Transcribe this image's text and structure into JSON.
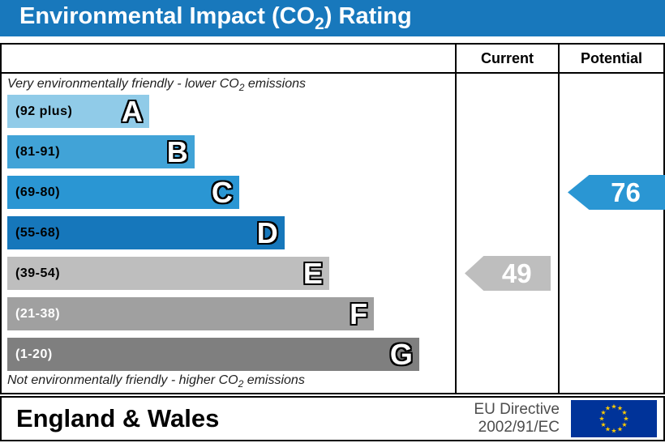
{
  "title": {
    "prefix": "Environmental Impact (CO",
    "sub": "2",
    "suffix": ") Rating"
  },
  "header": {
    "current": "Current",
    "potential": "Potential"
  },
  "top_note": {
    "prefix": "Very environmentally friendly - lower CO",
    "sub": "2",
    "suffix": " emissions"
  },
  "bottom_note": {
    "prefix": "Not environmentally friendly - higher CO",
    "sub": "2",
    "suffix": " emissions"
  },
  "footer": {
    "region": "England & Wales",
    "directive_line1": "EU Directive",
    "directive_line2": "2002/91/EC",
    "flag": {
      "background": "#003399",
      "star_color": "#ffcc00"
    }
  },
  "colors": {
    "title_bar": "#1878bc",
    "border": "#000000"
  },
  "chart_data": {
    "type": "bar",
    "title": "Environmental Impact (CO2) Rating",
    "subtitle_top": "Very environmentally friendly - lower CO2 emissions",
    "subtitle_bottom": "Not environmentally friendly - higher CO2 emissions",
    "columns": [
      "Current",
      "Potential"
    ],
    "categories": [
      "A",
      "B",
      "C",
      "D",
      "E",
      "F",
      "G"
    ],
    "band_ranges": [
      "(92 plus)",
      "(81-91)",
      "(69-80)",
      "(55-68)",
      "(39-54)",
      "(21-38)",
      "(1-20)"
    ],
    "band_colors": [
      "#90cbe8",
      "#41a3d7",
      "#2a96d3",
      "#1677bb",
      "#bebebe",
      "#a0a0a0",
      "#7f7f7f"
    ],
    "band_text_colors": [
      "#000000",
      "#000000",
      "#000000",
      "#000000",
      "#000000",
      "#ffffff",
      "#ffffff"
    ],
    "bar_width_pct": [
      31.7,
      41.8,
      51.8,
      61.9,
      71.9,
      81.9,
      92
    ],
    "markers": [
      {
        "label": "current",
        "value": 49,
        "band": "E",
        "band_index": 4,
        "color": "#bebebe"
      },
      {
        "label": "potential",
        "value": 76,
        "band": "C",
        "band_index": 2,
        "color": "#2a96d3"
      }
    ]
  }
}
